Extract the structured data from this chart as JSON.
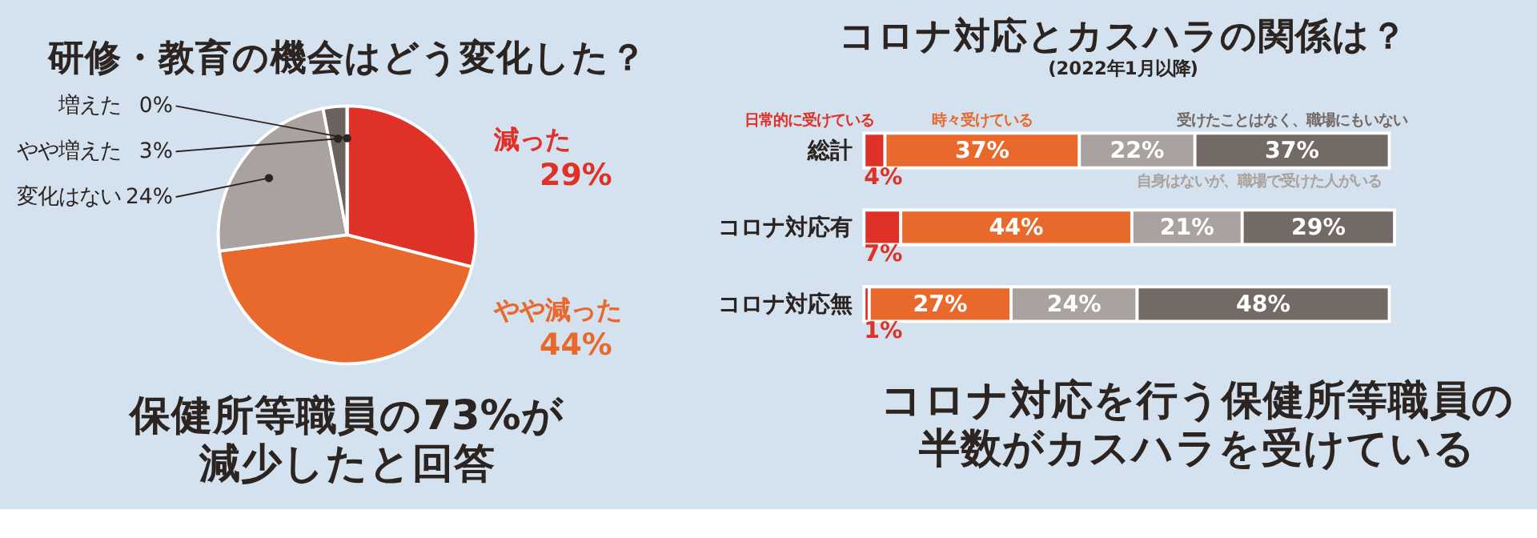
{
  "chart_data": [
    {
      "type": "pie",
      "title": "研修・教育の機会はどう変化した？",
      "categories": [
        "減った",
        "やや減った",
        "変化はない",
        "やや増えた",
        "増えた"
      ],
      "values": [
        29,
        44,
        24,
        3,
        0
      ],
      "value_labels": [
        "29%",
        "44%",
        "24%",
        "3%",
        "0%"
      ],
      "colors": [
        "#e03129",
        "#e8692b",
        "#a9a29e",
        "#6b625d",
        "#3b3330"
      ],
      "legend": false,
      "annotations": [
        "保健所等職員の73%が",
        "減少したと回答"
      ]
    },
    {
      "type": "bar",
      "orientation": "horizontal",
      "stacked": true,
      "title": "コロナ対応とカスハラの関係は？",
      "subtitle": "(2022年1月以降)",
      "categories": [
        "総計",
        "コロナ対応有",
        "コロナ対応無"
      ],
      "series": [
        {
          "name": "日常的に受けている",
          "color": "#e03129",
          "values": [
            4,
            7,
            1
          ],
          "value_labels": [
            "4%",
            "7%",
            "1%"
          ]
        },
        {
          "name": "時々受けている",
          "color": "#e8692b",
          "values": [
            37,
            44,
            27
          ],
          "value_labels": [
            "37%",
            "44%",
            "27%"
          ]
        },
        {
          "name": "自身はないが、職場で受けた人がいる",
          "color": "#a9a29e",
          "values": [
            22,
            21,
            24
          ],
          "value_labels": [
            "22%",
            "21%",
            "24%"
          ]
        },
        {
          "name": "受けたことはなく、職場にもいない",
          "color": "#736a65",
          "values": [
            37,
            29,
            48
          ],
          "value_labels": [
            "37%",
            "29%",
            "48%"
          ]
        }
      ],
      "legend": false,
      "annotations": [
        "コロナ対応を行う保健所等職員の",
        "半数がカスハラを受けている"
      ]
    }
  ]
}
